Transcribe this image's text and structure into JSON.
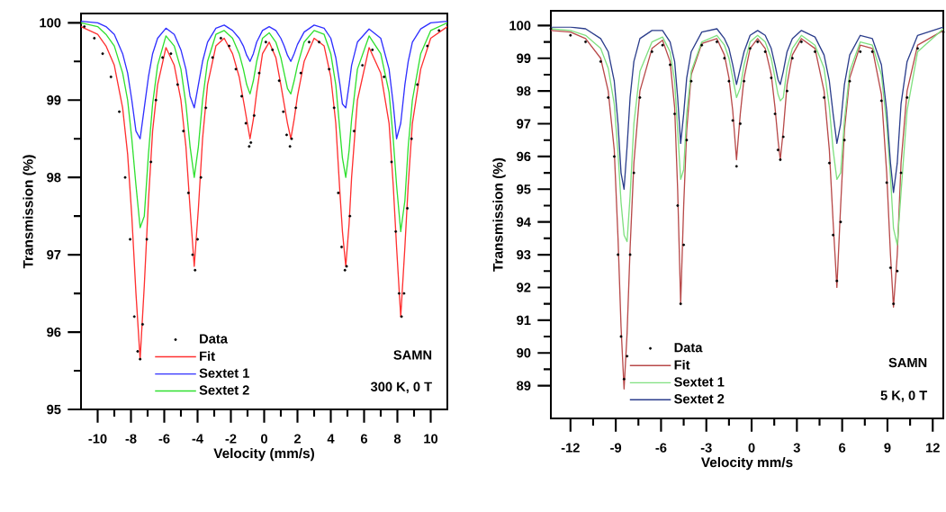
{
  "chart_data": [
    {
      "type": "line",
      "xlabel": "Velocity (mm/s)",
      "ylabel": "Transmission (%)",
      "xlim": [
        -11,
        11
      ],
      "ylim": [
        95,
        100.12
      ],
      "xticks": [
        -10,
        -8,
        -6,
        -4,
        -2,
        0,
        2,
        4,
        6,
        8,
        10
      ],
      "yticks": [
        95,
        96,
        97,
        98,
        99,
        100
      ],
      "grid": false,
      "legend": "bottom left",
      "annotations": [
        "SAMN",
        "300 K, 0 T"
      ],
      "x": [
        -11,
        -10,
        -9.5,
        -9,
        -8.5,
        -8.2,
        -7.95,
        -7.7,
        -7.45,
        -7.2,
        -6.95,
        -6.7,
        -6.4,
        -5.9,
        -5.4,
        -5.0,
        -4.7,
        -4.45,
        -4.2,
        -3.95,
        -3.7,
        -3.4,
        -2.9,
        -2.4,
        -1.9,
        -1.5,
        -1.25,
        -1.05,
        -0.85,
        -0.65,
        -0.45,
        -0.1,
        0.3,
        0.7,
        1.0,
        1.2,
        1.4,
        1.6,
        1.8,
        2.0,
        2.4,
        3.0,
        3.6,
        4.0,
        4.3,
        4.55,
        4.7,
        4.9,
        5.1,
        5.25,
        5.6,
        6.3,
        7.0,
        7.5,
        7.75,
        7.95,
        8.2,
        8.45,
        8.65,
        8.9,
        9.4,
        10,
        11
      ],
      "series": [
        {
          "name": "Data",
          "type": "scatter",
          "color": "#000000",
          "x": [
            -10.8,
            -10.2,
            -9.7,
            -9.2,
            -8.7,
            -8.35,
            -8.05,
            -7.8,
            -7.6,
            -7.45,
            -7.3,
            -7.05,
            -6.8,
            -6.5,
            -6.1,
            -5.6,
            -5.2,
            -4.85,
            -4.55,
            -4.3,
            -4.15,
            -4.0,
            -3.8,
            -3.5,
            -3.1,
            -2.6,
            -2.1,
            -1.7,
            -1.35,
            -1.1,
            -0.9,
            -0.8,
            -0.6,
            -0.3,
            0.1,
            0.5,
            0.9,
            1.15,
            1.35,
            1.55,
            1.65,
            1.9,
            2.2,
            2.7,
            3.3,
            3.9,
            4.2,
            4.45,
            4.65,
            4.85,
            4.95,
            5.15,
            5.4,
            5.9,
            6.5,
            7.2,
            7.65,
            7.9,
            8.1,
            8.25,
            8.4,
            8.6,
            8.85,
            9.2,
            9.8,
            10.5
          ],
          "values": [
            99.95,
            99.8,
            99.6,
            99.3,
            98.85,
            98.0,
            97.2,
            96.2,
            95.75,
            95.65,
            96.1,
            97.2,
            98.2,
            99.0,
            99.55,
            99.6,
            99.2,
            98.6,
            97.8,
            97.0,
            96.8,
            97.2,
            98.0,
            98.9,
            99.55,
            99.8,
            99.7,
            99.4,
            99.05,
            98.7,
            98.4,
            98.45,
            98.8,
            99.35,
            99.75,
            99.65,
            99.25,
            98.85,
            98.55,
            98.4,
            98.5,
            98.9,
            99.35,
            99.75,
            99.75,
            99.4,
            98.9,
            97.8,
            97.1,
            96.8,
            96.85,
            97.5,
            98.6,
            99.45,
            99.65,
            99.3,
            98.2,
            97.3,
            96.5,
            96.2,
            96.5,
            97.6,
            98.5,
            99.2,
            99.7,
            99.9
          ]
        },
        {
          "name": "Fit",
          "color": "#ff3030",
          "values": [
            99.95,
            99.85,
            99.7,
            99.45,
            98.9,
            98.3,
            97.5,
            96.5,
            95.65,
            96.6,
            97.7,
            98.6,
            99.2,
            99.68,
            99.45,
            99.0,
            98.4,
            97.6,
            96.85,
            97.6,
            98.5,
            99.2,
            99.7,
            99.8,
            99.6,
            99.3,
            99.0,
            98.75,
            98.5,
            98.75,
            99.1,
            99.6,
            99.75,
            99.55,
            99.2,
            98.95,
            98.7,
            98.5,
            98.75,
            99.05,
            99.5,
            99.8,
            99.7,
            99.3,
            98.7,
            97.8,
            97.3,
            96.85,
            97.4,
            98.0,
            99.0,
            99.68,
            99.35,
            98.7,
            97.9,
            97.1,
            96.2,
            97.1,
            97.9,
            98.7,
            99.4,
            99.8,
            99.95
          ]
        },
        {
          "name": "Sextet 1",
          "color": "#3030ff",
          "values": [
            100.02,
            100.0,
            99.95,
            99.85,
            99.6,
            99.35,
            99.0,
            98.6,
            98.5,
            98.9,
            99.3,
            99.6,
            99.8,
            99.93,
            99.85,
            99.65,
            99.4,
            99.05,
            98.9,
            99.2,
            99.5,
            99.75,
            99.93,
            99.97,
            99.9,
            99.8,
            99.7,
            99.58,
            99.5,
            99.6,
            99.75,
            99.9,
            99.95,
            99.9,
            99.8,
            99.7,
            99.58,
            99.5,
            99.6,
            99.72,
            99.88,
            99.97,
            99.93,
            99.8,
            99.55,
            99.2,
            98.95,
            98.9,
            99.2,
            99.45,
            99.75,
            99.92,
            99.8,
            99.4,
            98.95,
            98.5,
            98.7,
            99.2,
            99.5,
            99.75,
            99.92,
            100.0,
            100.02
          ]
        },
        {
          "name": "Sextet 2",
          "color": "#30e030",
          "values": [
            100.0,
            99.95,
            99.85,
            99.7,
            99.35,
            99.0,
            98.5,
            97.9,
            97.35,
            97.5,
            98.3,
            98.95,
            99.45,
            99.83,
            99.7,
            99.4,
            98.95,
            98.4,
            98.0,
            98.4,
            99.0,
            99.5,
            99.85,
            99.9,
            99.8,
            99.6,
            99.4,
            99.2,
            99.08,
            99.25,
            99.5,
            99.8,
            99.87,
            99.75,
            99.55,
            99.35,
            99.15,
            99.08,
            99.25,
            99.45,
            99.75,
            99.9,
            99.85,
            99.6,
            99.2,
            98.6,
            98.25,
            98.0,
            98.35,
            98.75,
            99.4,
            99.83,
            99.6,
            99.1,
            98.5,
            97.9,
            97.3,
            97.7,
            98.4,
            99.0,
            99.6,
            99.9,
            100.0
          ]
        }
      ]
    },
    {
      "type": "line",
      "xlabel": "Velocity mm/s",
      "ylabel": "Transmission (%)",
      "xlim": [
        -13.3,
        12.7
      ],
      "ylim": [
        88,
        100.45
      ],
      "xticks": [
        -12,
        -9,
        -6,
        -3,
        0,
        3,
        6,
        9,
        12
      ],
      "yticks": [
        89,
        90,
        91,
        92,
        93,
        94,
        95,
        96,
        97,
        98,
        99,
        100
      ],
      "grid": false,
      "legend": "bottom left",
      "annotations": [
        "SAMN",
        "5 K, 0 T"
      ],
      "x": [
        -13.3,
        -12,
        -11,
        -10,
        -9.5,
        -9.1,
        -8.85,
        -8.65,
        -8.45,
        -8.25,
        -8.05,
        -7.8,
        -7.4,
        -6.6,
        -5.9,
        -5.4,
        -5.1,
        -4.9,
        -4.7,
        -4.5,
        -4.3,
        -4.0,
        -3.3,
        -2.3,
        -1.8,
        -1.5,
        -1.25,
        -1.0,
        -0.75,
        -0.5,
        -0.1,
        0.4,
        0.9,
        1.3,
        1.55,
        1.75,
        1.9,
        2.1,
        2.35,
        2.7,
        3.3,
        4.2,
        4.8,
        5.15,
        5.4,
        5.65,
        5.9,
        6.15,
        6.5,
        7.2,
        8.0,
        8.6,
        8.95,
        9.2,
        9.4,
        9.65,
        9.9,
        10.3,
        11,
        12.7
      ],
      "series": [
        {
          "name": "Data",
          "type": "scatter",
          "color": "#000000",
          "values": [
            99.9,
            99.7,
            99.5,
            98.9,
            97.8,
            96.0,
            93.0,
            90.5,
            89.2,
            89.9,
            93.0,
            95.5,
            97.8,
            99.2,
            99.4,
            98.8,
            97.3,
            94.5,
            91.5,
            93.3,
            96.5,
            98.3,
            99.4,
            99.5,
            99.0,
            98.3,
            97.1,
            95.7,
            97.0,
            98.3,
            99.3,
            99.5,
            99.2,
            98.4,
            97.3,
            96.2,
            95.9,
            96.6,
            98.0,
            99.0,
            99.5,
            99.2,
            97.8,
            95.8,
            93.6,
            92.2,
            94.0,
            96.5,
            98.3,
            99.2,
            99.2,
            97.7,
            95.2,
            92.6,
            91.5,
            92.5,
            95.5,
            97.8,
            99.3,
            99.8
          ]
        },
        {
          "name": "Fit",
          "color": "#b84a4a",
          "values": [
            99.85,
            99.8,
            99.6,
            99.0,
            98.0,
            96.2,
            93.5,
            90.8,
            88.9,
            90.6,
            93.2,
            95.8,
            98.0,
            99.3,
            99.55,
            98.9,
            97.5,
            95.0,
            91.5,
            94.5,
            96.8,
            98.5,
            99.45,
            99.6,
            99.1,
            98.4,
            97.4,
            95.9,
            97.3,
            98.4,
            99.3,
            99.6,
            99.3,
            98.5,
            97.5,
            96.5,
            95.9,
            96.8,
            98.2,
            99.1,
            99.6,
            99.3,
            98.0,
            96.2,
            94.0,
            92.0,
            94.5,
            96.8,
            98.4,
            99.4,
            99.3,
            97.9,
            95.5,
            93.0,
            91.4,
            93.0,
            95.8,
            98.0,
            99.4,
            99.85
          ]
        },
        {
          "name": "Sextet 1",
          "color": "#80e080",
          "values": [
            99.9,
            99.85,
            99.7,
            99.3,
            98.7,
            97.6,
            96.1,
            94.6,
            93.6,
            93.4,
            94.8,
            97.0,
            98.6,
            99.5,
            99.65,
            99.2,
            98.3,
            96.8,
            95.3,
            95.6,
            97.3,
            98.6,
            99.5,
            99.7,
            99.4,
            99.0,
            98.4,
            97.8,
            98.1,
            98.8,
            99.5,
            99.7,
            99.5,
            99.0,
            98.4,
            97.9,
            97.7,
            97.8,
            98.7,
            99.3,
            99.7,
            99.4,
            98.7,
            97.5,
            96.2,
            95.3,
            95.5,
            97.1,
            98.6,
            99.5,
            99.4,
            98.5,
            97.0,
            95.4,
            93.8,
            93.3,
            94.9,
            97.4,
            99.2,
            99.9
          ]
        },
        {
          "name": "Sextet 2",
          "color": "#2c3e8c",
          "values": [
            99.95,
            99.95,
            99.9,
            99.6,
            99.2,
            98.3,
            97.0,
            95.5,
            95.0,
            96.3,
            97.8,
            98.9,
            99.6,
            99.85,
            99.85,
            99.5,
            98.9,
            97.8,
            96.4,
            97.3,
            98.4,
            99.2,
            99.8,
            99.9,
            99.6,
            99.3,
            98.8,
            98.2,
            98.7,
            99.2,
            99.7,
            99.85,
            99.7,
            99.3,
            98.8,
            98.35,
            98.2,
            98.6,
            99.2,
            99.6,
            99.85,
            99.65,
            99.1,
            98.3,
            97.3,
            96.4,
            97.0,
            98.2,
            99.1,
            99.7,
            99.6,
            98.8,
            97.4,
            95.8,
            94.9,
            95.8,
            97.6,
            98.9,
            99.7,
            99.95
          ]
        }
      ]
    }
  ]
}
